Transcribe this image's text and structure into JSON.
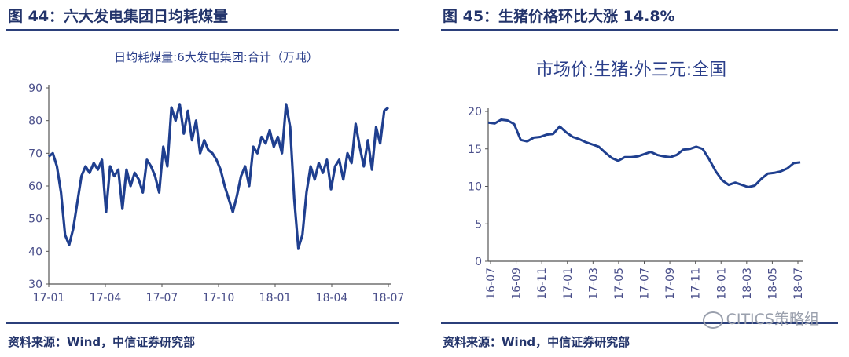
{
  "left": {
    "fig_title": "图 44：六大发电集团日均耗煤量",
    "source": "资料来源：Wind，中信证券研究部",
    "chart_data": {
      "type": "line",
      "title": "日均耗煤量:6大发电集团:合计（万吨）",
      "ylim": [
        30,
        90
      ],
      "yticks": [
        30,
        40,
        50,
        60,
        70,
        80,
        90
      ],
      "xtick_labels": [
        "17-01",
        "17-04",
        "17-07",
        "17-10",
        "18-01",
        "18-04",
        "18-07"
      ],
      "grid": false,
      "series": [
        {
          "color": "#1f3f8f",
          "x": [
            0,
            1,
            2,
            3,
            4,
            5,
            6,
            7,
            8,
            9,
            10,
            11,
            12,
            13,
            14,
            15,
            16,
            17,
            18,
            19,
            20,
            21,
            22,
            23,
            24,
            25,
            26,
            27,
            28,
            29,
            30,
            31,
            32,
            33,
            34,
            35,
            36,
            37,
            38,
            39,
            40,
            41,
            42,
            43,
            44,
            45,
            46,
            47,
            48,
            49,
            50,
            51,
            52,
            53,
            54,
            55,
            56,
            57,
            58,
            59,
            60,
            61,
            62,
            63,
            64,
            65,
            66,
            67,
            68,
            69,
            70,
            71,
            72,
            73,
            74,
            75,
            76,
            77,
            78,
            79,
            80,
            81,
            82,
            83
          ],
          "values": [
            69,
            70,
            66,
            58,
            45,
            42,
            47,
            55,
            63,
            66,
            64,
            67,
            65,
            68,
            52,
            66,
            63,
            65,
            53,
            65,
            60,
            64,
            62,
            58,
            68,
            66,
            63,
            58,
            72,
            66,
            84,
            80,
            85,
            76,
            83,
            74,
            80,
            70,
            74,
            71,
            70,
            68,
            65,
            60,
            56,
            52,
            57,
            63,
            66,
            60,
            72,
            70,
            75,
            73,
            77,
            72,
            75,
            70,
            85,
            78,
            56,
            41,
            45,
            58,
            66,
            62,
            67,
            64,
            68,
            59,
            66,
            68,
            62,
            70,
            67,
            79,
            72,
            66,
            74,
            65,
            78,
            73,
            83,
            84
          ]
        }
      ]
    }
  },
  "right": {
    "fig_title": "图 45：生猪价格环比大涨 14.8%",
    "source": "资料来源：Wind，中信证券研究部",
    "watermark": "CITICS策略组",
    "chart_data": {
      "type": "line",
      "title": "市场价:生猪:外三元:全国",
      "ylim": [
        0,
        20
      ],
      "yticks": [
        0,
        5,
        10,
        15,
        20
      ],
      "xtick_labels": [
        "16-07",
        "16-09",
        "16-11",
        "17-01",
        "17-03",
        "17-05",
        "17-07",
        "17-09",
        "17-11",
        "18-01",
        "18-03",
        "18-05",
        "18-07"
      ],
      "grid": false,
      "series": [
        {
          "color": "#1f3f8f",
          "x": [
            0,
            0.5,
            1,
            1.5,
            2,
            2.5,
            3,
            3.5,
            4,
            4.5,
            5,
            5.5,
            6,
            6.5,
            7,
            7.5,
            8,
            8.5,
            9,
            9.5,
            10,
            10.5,
            11,
            11.5,
            12,
            12.5,
            13,
            13.5,
            14,
            14.5,
            15,
            15.5,
            16,
            16.5,
            17,
            17.5,
            18,
            18.5,
            19,
            19.5,
            20,
            20.5,
            21,
            21.5,
            22,
            22.5,
            23,
            23.5,
            24
          ],
          "values": [
            18.5,
            18.4,
            18.9,
            18.8,
            18.3,
            16.2,
            16.0,
            16.5,
            16.6,
            16.9,
            17.0,
            18.0,
            17.2,
            16.6,
            16.3,
            15.9,
            15.6,
            15.3,
            14.5,
            13.8,
            13.4,
            13.9,
            13.9,
            14.0,
            14.3,
            14.6,
            14.2,
            14.0,
            13.9,
            14.2,
            14.9,
            15.0,
            15.3,
            15.0,
            13.6,
            12.0,
            10.8,
            10.2,
            10.5,
            10.2,
            9.9,
            10.1,
            11.0,
            11.7,
            11.8,
            12.0,
            12.4,
            13.1,
            13.2
          ]
        }
      ]
    }
  }
}
